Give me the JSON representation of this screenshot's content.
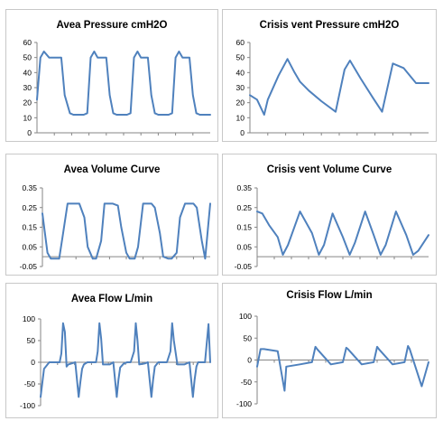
{
  "colors": {
    "series": "#4f81bd"
  },
  "chart_data": [
    {
      "type": "line",
      "title": "Avea Pressure cmH2O",
      "ylim": [
        0,
        60
      ],
      "yticks": [
        0,
        10,
        20,
        30,
        40,
        50,
        60
      ],
      "legend": "none",
      "grid": false,
      "x": [
        0,
        0.2,
        0.4,
        0.7,
        0.9,
        1.2,
        1.4,
        1.6,
        1.9,
        2.1,
        2.3,
        2.5,
        2.7,
        2.9,
        3.1,
        3.3,
        3.5,
        3.7,
        4.0,
        4.2,
        4.4,
        4.6,
        4.8,
        5.0,
        5.2,
        5.4,
        5.6,
        5.8,
        6.0,
        6.2,
        6.4,
        6.6,
        6.8,
        7.0,
        7.2,
        7.4,
        7.6,
        7.8,
        8.0,
        8.2,
        8.4,
        8.6,
        8.8,
        9.0,
        9.2,
        9.4,
        9.6,
        9.8,
        10.0
      ],
      "y": [
        22,
        50,
        54,
        50,
        50,
        50,
        50,
        25,
        13,
        12,
        12,
        12,
        12,
        13,
        50,
        54,
        50,
        50,
        50,
        25,
        13,
        12,
        12,
        12,
        12,
        13,
        50,
        54,
        50,
        50,
        50,
        25,
        13,
        12,
        12,
        12,
        12,
        13,
        50,
        54,
        50,
        50,
        50,
        25,
        13,
        12,
        12,
        12,
        12
      ]
    },
    {
      "type": "line",
      "title": "Crisis vent Pressure cmH2O",
      "ylim": [
        0,
        60
      ],
      "yticks": [
        0,
        10,
        20,
        30,
        40,
        50,
        60
      ],
      "legend": "none",
      "grid": false,
      "x": [
        0,
        0.4,
        0.8,
        1.0,
        1.6,
        2.1,
        2.5,
        2.8,
        3.3,
        4.0,
        4.8,
        5.3,
        5.6,
        6.2,
        6.9,
        7.4,
        8.0,
        8.6,
        9.3,
        10.0
      ],
      "y": [
        25,
        22,
        12,
        22,
        38,
        49,
        40,
        34,
        28,
        21,
        14,
        42,
        48,
        36,
        23,
        14,
        46,
        43,
        33,
        33
      ]
    },
    {
      "type": "line",
      "title": "Avea Volume Curve",
      "ylim": [
        -0.05,
        0.35
      ],
      "yticks": [
        -0.05,
        0.05,
        0.15,
        0.25,
        0.35
      ],
      "legend": "none",
      "grid": false,
      "x": [
        0,
        0.3,
        0.5,
        0.8,
        1.0,
        1.2,
        1.5,
        1.7,
        2.0,
        2.2,
        2.5,
        2.7,
        3.0,
        3.2,
        3.5,
        3.7,
        4.0,
        4.2,
        4.5,
        4.7,
        5.0,
        5.2,
        5.5,
        5.7,
        6.0,
        6.2,
        6.5,
        6.7,
        7.0,
        7.2,
        7.5,
        7.7,
        8.0,
        8.2,
        8.5,
        8.7,
        9.0,
        9.2,
        9.5,
        9.7,
        10.0
      ],
      "y": [
        0.22,
        0.02,
        -0.01,
        -0.01,
        -0.01,
        0.1,
        0.27,
        0.27,
        0.27,
        0.27,
        0.2,
        0.05,
        -0.01,
        -0.01,
        0.08,
        0.27,
        0.27,
        0.27,
        0.26,
        0.15,
        0.02,
        -0.01,
        -0.01,
        0.05,
        0.27,
        0.27,
        0.27,
        0.25,
        0.12,
        0.0,
        -0.01,
        -0.01,
        0.02,
        0.2,
        0.27,
        0.27,
        0.27,
        0.25,
        0.08,
        -0.01,
        0.27
      ]
    },
    {
      "type": "line",
      "title": "Crisis vent Volume Curve",
      "ylim": [
        -0.05,
        0.35
      ],
      "yticks": [
        -0.05,
        0.05,
        0.15,
        0.25,
        0.35
      ],
      "legend": "none",
      "grid": false,
      "x": [
        0,
        0.3,
        0.7,
        1.2,
        1.5,
        1.8,
        2.5,
        3.2,
        3.6,
        3.9,
        4.4,
        5.0,
        5.4,
        5.7,
        6.3,
        6.8,
        7.2,
        7.5,
        8.1,
        8.7,
        9.1,
        9.4,
        10.0
      ],
      "y": [
        0.23,
        0.22,
        0.16,
        0.1,
        0.01,
        0.06,
        0.23,
        0.12,
        0.01,
        0.06,
        0.22,
        0.1,
        0.01,
        0.07,
        0.23,
        0.11,
        0.01,
        0.06,
        0.23,
        0.11,
        0.01,
        0.03,
        0.11
      ]
    },
    {
      "type": "line",
      "title": "Avea Flow L/min",
      "ylim": [
        -100,
        100
      ],
      "yticks": [
        -100,
        -50,
        0,
        50,
        100
      ],
      "legend": "none",
      "grid": false,
      "x": [
        0,
        0.2,
        0.5,
        0.9,
        1.1,
        1.2,
        1.3,
        1.4,
        1.5,
        1.6,
        2.0,
        2.2,
        2.3,
        2.4,
        2.5,
        2.7,
        3.0,
        3.2,
        3.3,
        3.4,
        3.5,
        3.6,
        4.0,
        4.2,
        4.4,
        4.5,
        4.6,
        4.8,
        5.0,
        5.2,
        5.4,
        5.5,
        5.6,
        5.7,
        6.0,
        6.2,
        6.4,
        6.5,
        6.6,
        6.8,
        7.1,
        7.3,
        7.5,
        7.6,
        7.7,
        7.9,
        8.3,
        8.6,
        8.8,
        8.9,
        9.0,
        9.1,
        9.5,
        9.7,
        9.8
      ],
      "y": [
        -80,
        -15,
        0,
        0,
        0,
        20,
        90,
        70,
        -10,
        -5,
        0,
        -80,
        -45,
        -15,
        -5,
        0,
        0,
        0,
        25,
        90,
        55,
        -5,
        -5,
        0,
        -80,
        -40,
        -12,
        -3,
        0,
        0,
        25,
        90,
        50,
        -5,
        -3,
        0,
        -80,
        -40,
        -10,
        0,
        0,
        0,
        25,
        90,
        50,
        -5,
        -5,
        0,
        -80,
        -40,
        -10,
        0,
        0,
        88,
        0
      ]
    },
    {
      "type": "line",
      "title": "Crisis Flow L/min",
      "ylim": [
        -100,
        100
      ],
      "yticks": [
        -100,
        -50,
        0,
        50,
        100
      ],
      "legend": "none",
      "grid": false,
      "x": [
        0,
        0.2,
        0.4,
        1.2,
        1.6,
        1.7,
        2.5,
        3.2,
        3.4,
        3.5,
        4.3,
        5.0,
        5.2,
        5.3,
        6.1,
        6.8,
        7.0,
        7.1,
        7.9,
        8.6,
        8.8,
        8.9,
        9.6,
        10.0
      ],
      "y": [
        -15,
        25,
        25,
        20,
        -70,
        -15,
        -10,
        -5,
        30,
        25,
        -10,
        -5,
        28,
        25,
        -10,
        -5,
        30,
        25,
        -10,
        -5,
        32,
        25,
        -60,
        -5
      ]
    }
  ]
}
